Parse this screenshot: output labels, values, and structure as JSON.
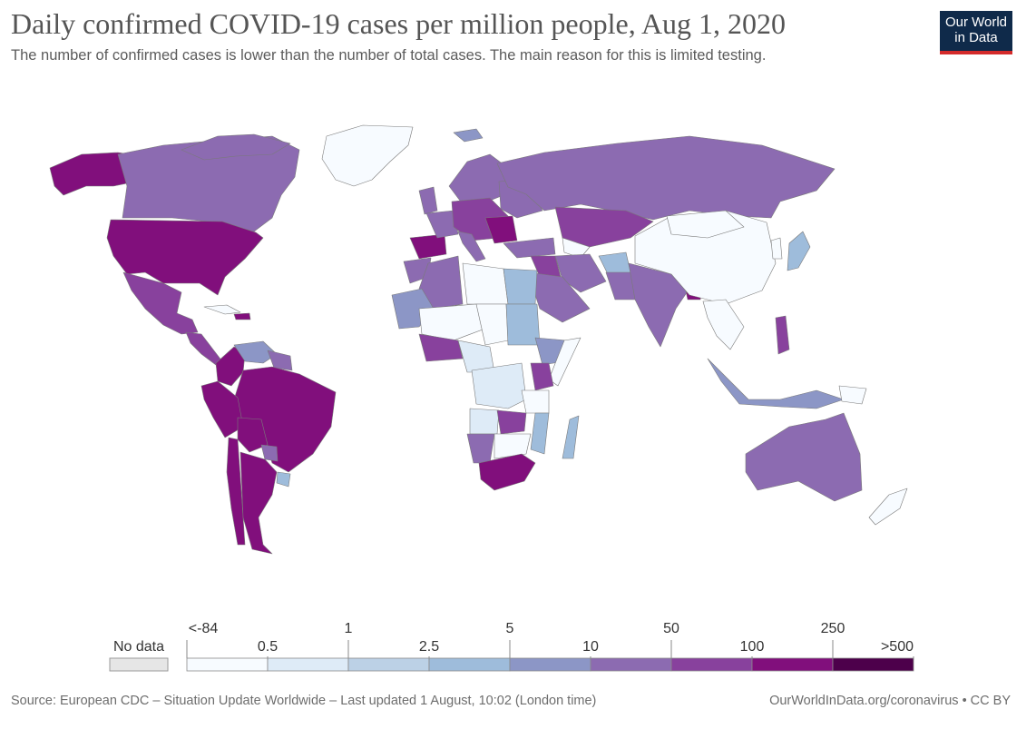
{
  "header": {
    "title": "Daily confirmed COVID-19 cases per million people, Aug 1, 2020",
    "subtitle": "The number of confirmed cases is lower than the number of total cases. The main reason for this is limited testing."
  },
  "logo": {
    "line1": "Our World",
    "line2": "in Data",
    "bg_color": "#0f2a4a",
    "accent_color": "#d42b2b"
  },
  "legend": {
    "no_data_label": "No data",
    "no_data_color": "#e6e6e6",
    "top_labels": [
      "<-84",
      "1",
      "5",
      "50",
      "250"
    ],
    "bottom_labels": [
      "0.5",
      "2.5",
      "10",
      "100",
      ">500"
    ],
    "bins": [
      {
        "from": "<-84",
        "to": "0.5",
        "color": "#f7fbff"
      },
      {
        "from": "0.5",
        "to": "1",
        "color": "#deebf7"
      },
      {
        "from": "1",
        "to": "2.5",
        "color": "#bcd1e6"
      },
      {
        "from": "2.5",
        "to": "5",
        "color": "#9ebcdb"
      },
      {
        "from": "5",
        "to": "10",
        "color": "#8c96c6"
      },
      {
        "from": "10",
        "to": "50",
        "color": "#8c6bb1"
      },
      {
        "from": "50",
        "to": "100",
        "color": "#88419d"
      },
      {
        "from": "100",
        "to": "250",
        "color": "#810f7c"
      },
      {
        "from": "250",
        "to": ">500",
        "color": "#4d004b"
      }
    ]
  },
  "footer": {
    "source": "Source: European CDC – Situation Update Worldwide – Last updated 1 August, 10:02 (London time)",
    "url": "OurWorldInData.org/coronavirus • CC BY"
  }
}
